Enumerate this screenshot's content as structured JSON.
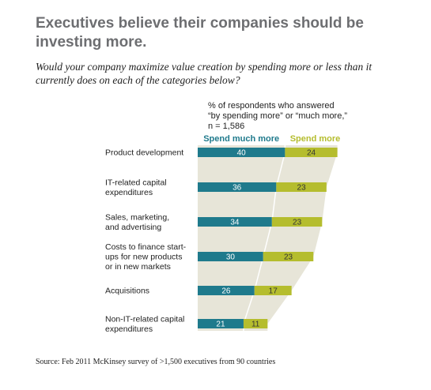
{
  "header": {
    "title": "Executives believe their companies should be investing more.",
    "subtitle": "Would your company maximize value creation by spending more or less than it currently does on each of the categories below?",
    "note": "% of respondents who answered\n“by spending more” or “much more,”\nn = 1,586"
  },
  "footer": {
    "source": "Source: Feb 2011 McKinsey survey of >1,500 executives from 90 countries"
  },
  "colors": {
    "much_more": "#1f7a8c",
    "more": "#b5bd2e",
    "band": "#e7e5d8",
    "divider": "#ffffff",
    "value_text_much": "#ffffff",
    "value_text_more": "#333333"
  },
  "chart_data": {
    "type": "bar",
    "orientation": "horizontal",
    "stacked": true,
    "categories": [
      "Product development",
      "IT-related capital\nexpenditures",
      "Sales, marketing,\nand advertising",
      "Costs to finance start-\nups for new products\nor in new markets",
      "Acquisitions",
      "Non-IT-related capital\nexpenditures"
    ],
    "series": [
      {
        "name": "Spend much more",
        "values": [
          40,
          36,
          34,
          30,
          26,
          21
        ]
      },
      {
        "name": "Spend more",
        "values": [
          24,
          23,
          23,
          23,
          17,
          11
        ]
      }
    ],
    "legend": "top"
  }
}
